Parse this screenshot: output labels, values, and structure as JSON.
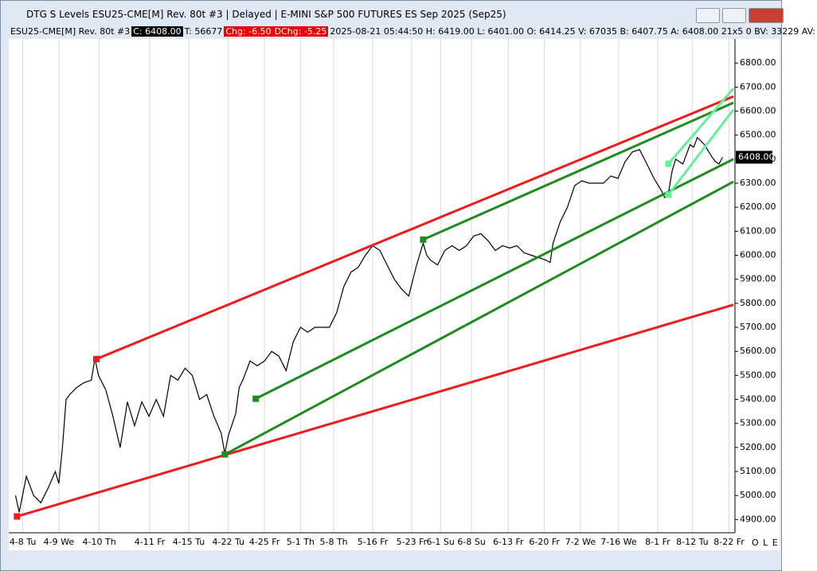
{
  "window_title": "DTG S Levels ESU25-CME[M]  Rev. 80t #3 | Delayed | E-MINI S&P 500 FUTURES ES Sep 2025 (Sep25)",
  "info": {
    "symbol": "ESU25-CME[M]  Rev. 80t #3",
    "close": "C: 6408.00",
    "trades": "T: 56677",
    "change": "Chg: -6.50",
    "day_change": "DChg: -5.25",
    "details": "2025-08-21 05:44:50  H: 6419.00  L: 6401.00  O: 6414.25  V: 67035  B: 6407.75  A: 6408.00  21x5  0  BV: 33229  AV:"
  },
  "status": "O L E",
  "chart_data": {
    "type": "line",
    "grid": true,
    "xlim": [
      0,
      100
    ],
    "ylim": [
      4845,
      6900
    ],
    "xticks": [
      {
        "value": 1.5,
        "label": "4-8 Tu"
      },
      {
        "value": 6.5,
        "label": "4-9 We"
      },
      {
        "value": 12.1,
        "label": "4-10 Th"
      },
      {
        "value": 19.1,
        "label": "4-11 Fr"
      },
      {
        "value": 24.5,
        "label": "4-15 Tu"
      },
      {
        "value": 30,
        "label": "4-22 Tu"
      },
      {
        "value": 35,
        "label": "4-25 Fr"
      },
      {
        "value": 40,
        "label": "5-1 Th"
      },
      {
        "value": 44.6,
        "label": "5-8 Th"
      },
      {
        "value": 50,
        "label": "5-16 Fr"
      },
      {
        "value": 55.4,
        "label": "5-23 Fr"
      },
      {
        "value": 59.4,
        "label": "6-1 Su"
      },
      {
        "value": 63.7,
        "label": "6-8 Su"
      },
      {
        "value": 68.8,
        "label": "6-13 Fr"
      },
      {
        "value": 73.8,
        "label": "6-20 Fr"
      },
      {
        "value": 78.8,
        "label": "7-2 We"
      },
      {
        "value": 84.1,
        "label": "7-16 We"
      },
      {
        "value": 89.5,
        "label": "8-1 Fr"
      },
      {
        "value": 94.3,
        "label": "8-12 Tu"
      },
      {
        "value": 99.4,
        "label": "8-22 Fr"
      }
    ],
    "yticks": [
      {
        "value": 4900,
        "label": "4900.00"
      },
      {
        "value": 5000,
        "label": "5000.00"
      },
      {
        "value": 5100,
        "label": "5100.00"
      },
      {
        "value": 5200,
        "label": "5200.00"
      },
      {
        "value": 5300,
        "label": "5300.00"
      },
      {
        "value": 5400,
        "label": "5400.00"
      },
      {
        "value": 5500,
        "label": "5500.00"
      },
      {
        "value": 5600,
        "label": "5600.00"
      },
      {
        "value": 5700,
        "label": "5700.00"
      },
      {
        "value": 5800,
        "label": "5800.00"
      },
      {
        "value": 5900,
        "label": "5900.00"
      },
      {
        "value": 6000,
        "label": "6000.00"
      },
      {
        "value": 6100,
        "label": "6100.00"
      },
      {
        "value": 6200,
        "label": "6200.00"
      },
      {
        "value": 6300,
        "label": "6300.00"
      },
      {
        "value": 6400,
        "label": "6400.00"
      },
      {
        "value": 6500,
        "label": "6500.00"
      },
      {
        "value": 6600,
        "label": "6600.00"
      },
      {
        "value": 6700,
        "label": "6700.00"
      },
      {
        "value": 6800,
        "label": "6800.00"
      }
    ],
    "last_price": {
      "value": 6408,
      "label": "6408.00"
    },
    "series": [
      {
        "color": "#000000",
        "x": [
          0.5,
          1,
          2,
          3,
          4,
          5,
          6,
          6.5,
          7,
          7.5,
          8,
          9,
          10,
          11,
          11.5,
          12,
          13,
          14,
          15,
          16,
          17,
          18,
          19,
          20,
          21,
          22,
          23,
          24,
          25,
          26,
          27,
          28,
          29,
          29.5,
          30,
          31,
          31.5,
          32,
          33,
          34,
          35,
          36,
          37,
          38,
          39,
          40,
          41,
          42,
          43,
          44,
          45,
          46,
          47,
          48,
          49,
          50,
          51,
          52,
          53,
          54,
          55,
          56,
          57,
          57.5,
          58,
          59,
          60,
          61,
          62,
          63,
          64,
          65,
          66,
          67,
          68,
          69,
          70,
          71,
          72,
          73,
          74,
          74.6,
          75,
          76,
          77,
          78,
          79,
          80,
          81,
          82,
          83,
          84,
          85,
          86,
          87,
          88,
          89,
          90,
          90.5,
          91,
          91.5,
          92,
          93,
          94,
          94.5,
          95,
          96,
          97,
          97.5,
          98,
          98.5
        ],
        "values": [
          5000,
          4930,
          5080,
          5000,
          4970,
          5030,
          5100,
          5050,
          5200,
          5400,
          5420,
          5450,
          5470,
          5480,
          5570,
          5500,
          5440,
          5330,
          5200,
          5390,
          5290,
          5390,
          5330,
          5400,
          5330,
          5500,
          5480,
          5530,
          5500,
          5400,
          5420,
          5330,
          5260,
          5175,
          5250,
          5340,
          5450,
          5480,
          5560,
          5540,
          5560,
          5600,
          5580,
          5520,
          5640,
          5700,
          5680,
          5700,
          5700,
          5700,
          5760,
          5870,
          5930,
          5950,
          6000,
          6040,
          6020,
          5960,
          5900,
          5860,
          5830,
          5950,
          6050,
          6000,
          5980,
          5960,
          6020,
          6040,
          6020,
          6040,
          6080,
          6090,
          6060,
          6020,
          6040,
          6030,
          6040,
          6010,
          6000,
          5990,
          5980,
          5970,
          6050,
          6140,
          6200,
          6290,
          6310,
          6300,
          6300,
          6300,
          6330,
          6320,
          6390,
          6430,
          6440,
          6380,
          6320,
          6270,
          6240,
          6260,
          6350,
          6400,
          6380,
          6460,
          6450,
          6490,
          6460,
          6410,
          6390,
          6380,
          6408
        ]
      }
    ],
    "trendlines": [
      {
        "color": "#ee1c1c",
        "x": [
          11.7,
          100
        ],
        "values": [
          5568,
          6661
        ]
      },
      {
        "color": "#ee1c1c",
        "x": [
          0.7,
          100
        ],
        "values": [
          4913,
          5794
        ]
      },
      {
        "color": "#1e8c1e",
        "x": [
          29.5,
          100
        ],
        "values": [
          5171,
          6306
        ]
      },
      {
        "color": "#1e8c1e",
        "x": [
          33.8,
          100
        ],
        "values": [
          5403,
          6400
        ]
      },
      {
        "color": "#1e8c1e",
        "x": [
          57,
          100
        ],
        "values": [
          6065,
          6635
        ]
      },
      {
        "color": "#66ee99",
        "x": [
          91,
          100
        ],
        "values": [
          6381,
          6694
        ]
      },
      {
        "color": "#66ee99",
        "x": [
          91,
          100
        ],
        "values": [
          6252,
          6606
        ]
      }
    ]
  }
}
